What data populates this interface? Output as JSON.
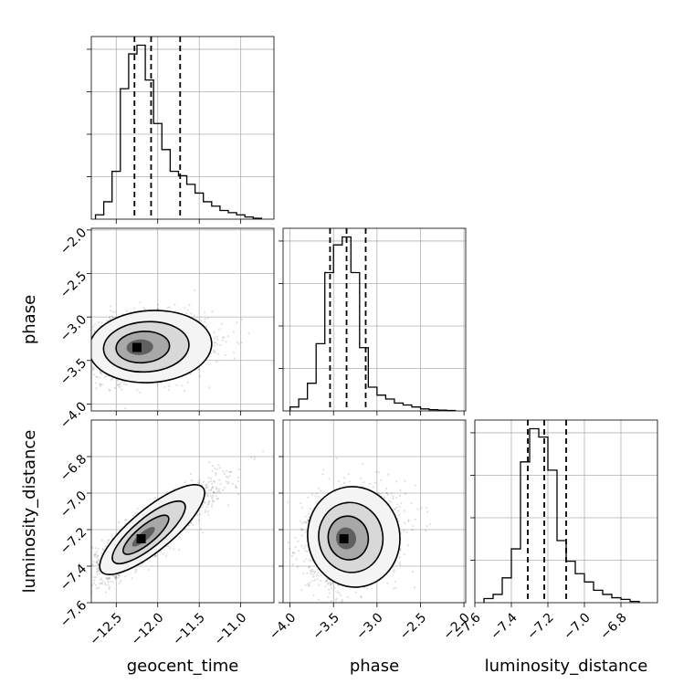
{
  "chart_data": {
    "type": "corner",
    "grid": true,
    "parameters": [
      {
        "name": "geocent_time",
        "range": [
          -12.8,
          -10.6
        ],
        "ticks": [
          -12.5,
          -12.0,
          -11.5,
          -11.0
        ],
        "tick_labels": [
          "−12.5",
          "−12.0",
          "−11.5",
          "−11.0"
        ],
        "quantiles": [
          -12.28,
          -12.08,
          -11.73
        ]
      },
      {
        "name": "phase",
        "range": [
          -4.08,
          -1.98
        ],
        "ticks": [
          -4.0,
          -3.5,
          -3.0,
          -2.5,
          -2.0
        ],
        "tick_labels": [
          "−4.0",
          "−3.5",
          "−3.0",
          "−2.5",
          "−2.0"
        ],
        "quantiles": [
          -3.54,
          -3.35,
          -3.13
        ]
      },
      {
        "name": "luminosity_distance",
        "range": [
          -7.6,
          -6.6
        ],
        "ticks": [
          -7.6,
          -7.4,
          -7.2,
          -7.0,
          -6.8
        ],
        "tick_labels": [
          "−7.6",
          "−7.4",
          "−7.2",
          "−7.0",
          "−6.8"
        ],
        "quantiles": [
          -7.31,
          -7.22,
          -7.1
        ]
      }
    ],
    "histograms": [
      {
        "parameter": "geocent_time",
        "bin_edges": [
          -12.75,
          -12.65,
          -12.55,
          -12.45,
          -12.35,
          -12.25,
          -12.15,
          -12.05,
          -11.95,
          -11.85,
          -11.75,
          -11.65,
          -11.55,
          -11.45,
          -11.35,
          -11.25,
          -11.15,
          -11.05,
          -10.95,
          -10.85,
          -10.75
        ],
        "counts": [
          1,
          4,
          11,
          30,
          38,
          40,
          32,
          22,
          16,
          11,
          10,
          8,
          6,
          4,
          3,
          2,
          1.5,
          1,
          0.5,
          0.2
        ]
      },
      {
        "parameter": "phase",
        "bin_edges": [
          -4.0,
          -3.9,
          -3.8,
          -3.7,
          -3.6,
          -3.5,
          -3.4,
          -3.3,
          -3.2,
          -3.1,
          -3.0,
          -2.9,
          -2.8,
          -2.7,
          -2.6,
          -2.5,
          -2.4,
          -2.3,
          -2.2,
          -2.1
        ],
        "counts": [
          1,
          3,
          7,
          17,
          35,
          42,
          44,
          35,
          16,
          6,
          4,
          3,
          2,
          1.5,
          1,
          0.5,
          0.3,
          0.2,
          0.1
        ]
      },
      {
        "parameter": "luminosity_distance",
        "bin_edges": [
          -7.55,
          -7.5,
          -7.45,
          -7.4,
          -7.35,
          -7.3,
          -7.25,
          -7.2,
          -7.15,
          -7.1,
          -7.05,
          -7.0,
          -6.95,
          -6.9,
          -6.85,
          -6.8,
          -6.75,
          -6.7
        ],
        "counts": [
          1,
          2,
          6,
          13,
          34,
          42,
          40,
          32,
          15,
          10,
          7,
          5,
          3,
          2,
          1.2,
          0.8,
          0.3
        ]
      }
    ],
    "joint_2d": [
      {
        "x": "geocent_time",
        "y": "phase",
        "center": [
          -12.25,
          -3.35
        ],
        "sigma": [
          0.28,
          0.18
        ],
        "rho": 0.1
      },
      {
        "x": "geocent_time",
        "y": "luminosity_distance",
        "center": [
          -12.2,
          -7.25
        ],
        "sigma": [
          0.3,
          0.11
        ],
        "rho": 0.85
      },
      {
        "x": "phase",
        "y": "luminosity_distance",
        "center": [
          -3.38,
          -7.25
        ],
        "sigma": [
          0.2,
          0.12
        ],
        "rho": 0.15
      }
    ]
  }
}
